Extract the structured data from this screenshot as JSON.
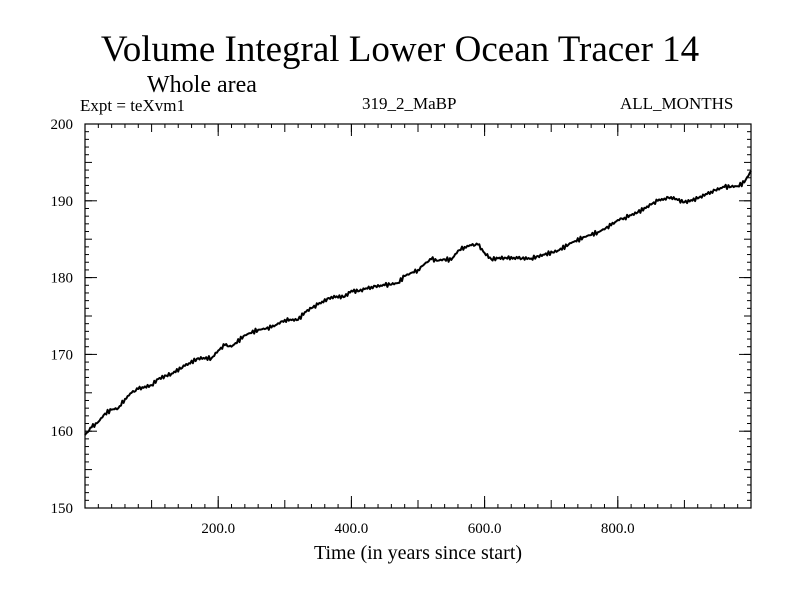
{
  "chart_data": {
    "type": "line",
    "title": "Volume Integral Lower Ocean Tracer 14",
    "subtitle": "Whole area",
    "experiment_label": "Expt = teXvm1",
    "run_label": "319_2_MaBP",
    "period_label": "ALL_MONTHS",
    "xlabel": "Time (in years since start)",
    "ylabel": "",
    "xlim": [
      0,
      1000
    ],
    "ylim": [
      150,
      200
    ],
    "x_ticks": [
      200,
      400,
      600,
      800
    ],
    "x_tick_labels": [
      "200.0",
      "400.0",
      "600.0",
      "800.0"
    ],
    "y_ticks": [
      150,
      160,
      170,
      180,
      190,
      200
    ],
    "y_tick_labels": [
      "150",
      "160",
      "170",
      "180",
      "190",
      "200"
    ],
    "grid": false,
    "series": [
      {
        "name": "Lower Ocean Tracer 14",
        "color": "#000000",
        "x": [
          0,
          10,
          20,
          30,
          40,
          50,
          60,
          70,
          80,
          100,
          110,
          130,
          150,
          170,
          190,
          200,
          210,
          220,
          240,
          260,
          280,
          300,
          320,
          330,
          340,
          350,
          370,
          390,
          400,
          410,
          420,
          430,
          450,
          470,
          480,
          500,
          510,
          520,
          530,
          540,
          550,
          560,
          570,
          580,
          590,
          600,
          610,
          620,
          630,
          650,
          670,
          690,
          710,
          730,
          750,
          770,
          790,
          800,
          810,
          830,
          850,
          860,
          870,
          880,
          890,
          900,
          920,
          940,
          960,
          980,
          990,
          1000
        ],
        "y": [
          159.5,
          160.5,
          161.2,
          162.3,
          162.8,
          163.0,
          164.2,
          165.0,
          165.5,
          166.0,
          166.8,
          167.5,
          168.5,
          169.5,
          169.5,
          170.5,
          171.2,
          171.0,
          172.5,
          173.2,
          173.5,
          174.5,
          174.5,
          175.5,
          176.0,
          176.5,
          177.5,
          177.5,
          178.3,
          178.2,
          178.5,
          178.8,
          179.0,
          179.3,
          180.2,
          181.0,
          181.8,
          182.4,
          182.2,
          182.4,
          182.3,
          183.5,
          184.0,
          184.2,
          184.3,
          183.2,
          182.4,
          182.5,
          182.6,
          182.5,
          182.5,
          183.0,
          183.5,
          184.5,
          185.3,
          185.9,
          186.8,
          187.5,
          187.8,
          188.5,
          189.5,
          190.0,
          190.3,
          190.5,
          190.1,
          189.8,
          190.3,
          191.2,
          191.8,
          191.9,
          192.4,
          193.9
        ]
      }
    ]
  }
}
